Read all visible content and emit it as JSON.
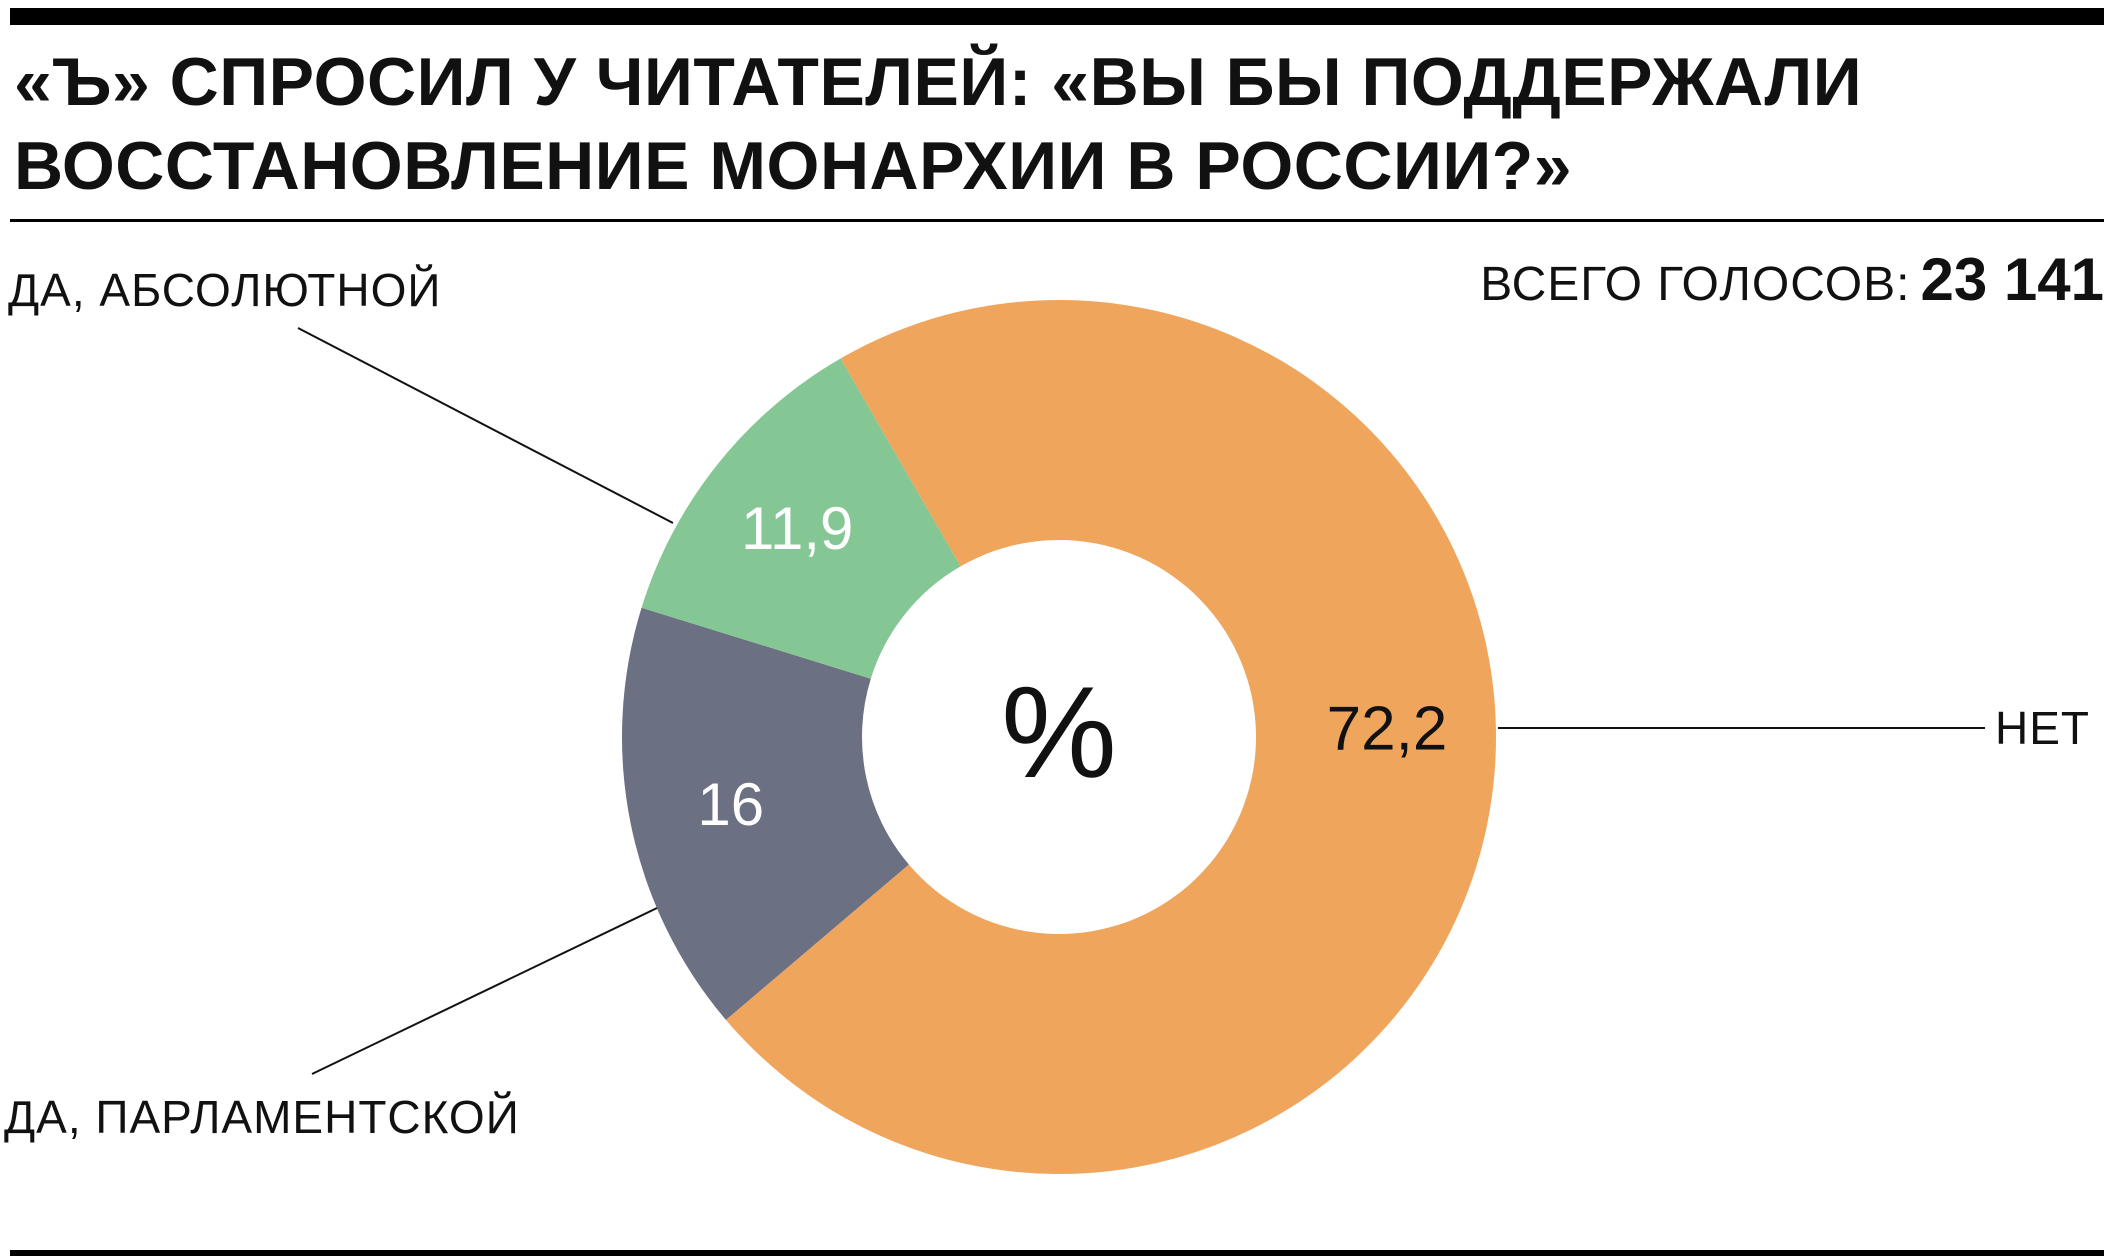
{
  "header": {
    "title_line1": "«Ъ» СПРОСИЛ У ЧИТАТЕЛЕЙ: «ВЫ БЫ ПОДДЕРЖАЛИ",
    "title_line2": "ВОССТАНОВЛЕНИЕ МОНАРХИИ В РОССИИ?»"
  },
  "total": {
    "label": "ВСЕГО ГОЛОСОВ:",
    "value": "23 141"
  },
  "chart_data": {
    "type": "pie",
    "title": "«Ъ» СПРОСИЛ У ЧИТАТЕЛЕЙ: «ВЫ БЫ ПОДДЕРЖАЛИ ВОССТАНОВЛЕНИЕ МОНАРХИИ В РОССИИ?»",
    "center_label": "%",
    "unit": "%",
    "slices": [
      {
        "category": "НЕТ",
        "value": 72.2,
        "value_label": "72,2",
        "color": "#efa55c",
        "label_color": "#111111"
      },
      {
        "category": "ДА, ПАРЛАМЕНТСКОЙ",
        "value": 16,
        "value_label": "16",
        "color": "#6b7082",
        "label_color": "#ffffff"
      },
      {
        "category": "ДА, АБСОЛЮТНОЙ",
        "value": 11.9,
        "value_label": "11,9",
        "color": "#85c794",
        "label_color": "#ffffff"
      }
    ]
  }
}
